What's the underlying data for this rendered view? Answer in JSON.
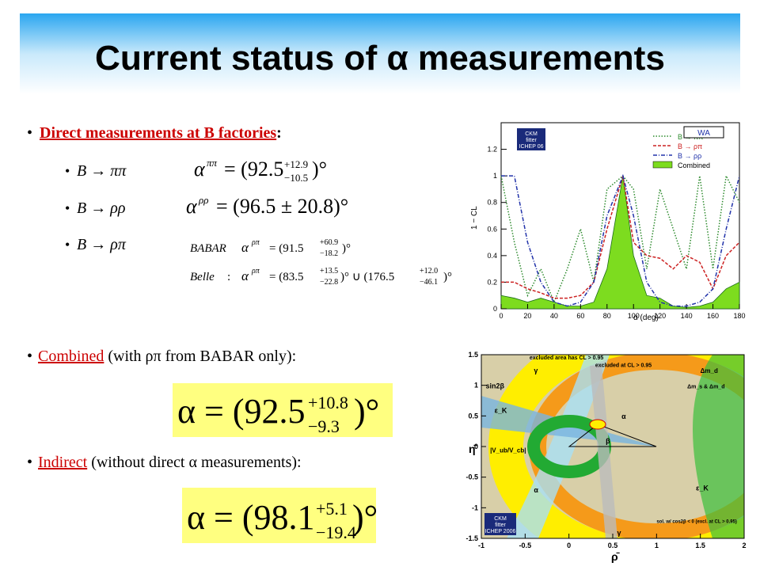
{
  "title": "Current status of α measurements",
  "direct": {
    "heading": "Direct measurements at B factories",
    "colon": ":",
    "items": [
      {
        "decay": "B → ππ",
        "symbol": "α",
        "sup": "ππ",
        "main": "= (92.5",
        "up": "+12.9",
        "down": "−10.5",
        "close": ")°"
      },
      {
        "decay": "B → ρρ",
        "symbol": "α",
        "sup": "ρρ",
        "main": "= (96.5 ± 20.8)°"
      },
      {
        "decay": "B → ρπ"
      }
    ],
    "rhopi": [
      {
        "label": "BABAR",
        "symbol": "α",
        "sup": "ρπ",
        "main": "= (91.5",
        "up": "+60.9",
        "down": "−18.2",
        "close": ")°"
      },
      {
        "label": "Belle",
        "sep": ":",
        "symbol": "α",
        "sup": "ρπ",
        "main": "= (83.5",
        "up": "+13.5",
        "down": "−22.8",
        "mid": ")° ∪ (176.5",
        "up2": "+12.0",
        "down2": "−46.1",
        "close": ")°"
      }
    ]
  },
  "combined": {
    "heading": "Combined",
    "text": "(with ρπ from BABAR only):",
    "formula": {
      "main": "α = (92.5",
      "up": "+10.8",
      "down": "−9.3",
      "close": ")°"
    }
  },
  "indirect": {
    "heading": "Indirect",
    "text": "(without direct α measurements):",
    "formula": {
      "main": "α = (98.1",
      "up": "+5.1",
      "down": "−19.4",
      "close": ")°"
    }
  },
  "plot1": {
    "ylabel": "1 − CL",
    "xlabel": "α (deg)",
    "xlim": [
      0,
      180
    ],
    "ylim": [
      0,
      1.4
    ],
    "xticks": [
      0,
      20,
      40,
      60,
      80,
      100,
      120,
      140,
      160,
      180
    ],
    "yticks": [
      0,
      0.2,
      0.4,
      0.6,
      0.8,
      1,
      1.2
    ],
    "logo": [
      "CKM",
      "fitter",
      "ICHEP 06"
    ],
    "wa": "WA",
    "x": [
      0,
      10,
      20,
      30,
      40,
      50,
      60,
      70,
      80,
      92,
      100,
      110,
      120,
      130,
      140,
      150,
      160,
      170,
      180
    ],
    "series": [
      {
        "name": "B → ππ",
        "color": "#2e8b2e",
        "values": [
          1,
          0.5,
          0.1,
          0.3,
          0.05,
          0.3,
          0.6,
          0.2,
          0.9,
          1,
          0.9,
          0.3,
          0.9,
          0.6,
          0.3,
          1,
          0.3,
          1,
          0.8
        ]
      },
      {
        "name": "B → ρπ",
        "color": "#cc2222",
        "values": [
          0.2,
          0.2,
          0.15,
          0.12,
          0.08,
          0.08,
          0.1,
          0.2,
          0.6,
          1,
          0.5,
          0.4,
          0.38,
          0.3,
          0.4,
          0.35,
          0.15,
          0.4,
          0.5
        ]
      },
      {
        "name": "B → ρρ",
        "color": "#2233aa",
        "values": [
          1,
          1,
          0.5,
          0.2,
          0.05,
          0.02,
          0.05,
          0.2,
          0.7,
          1,
          0.7,
          0.2,
          0.05,
          0.02,
          0.02,
          0.05,
          0.15,
          0.6,
          1
        ]
      },
      {
        "name": "Combined",
        "color": "#7ddc1f",
        "values": [
          0.1,
          0.08,
          0.05,
          0.08,
          0.05,
          0.02,
          0.02,
          0.05,
          0.3,
          1,
          0.4,
          0.1,
          0.08,
          0.02,
          0.01,
          0.02,
          0.05,
          0.15,
          0.2
        ]
      }
    ]
  },
  "plot2": {
    "xlabel": "ρ̄",
    "ylabel": "η̄",
    "xlim": [
      -1,
      2
    ],
    "ylim": [
      -1.5,
      1.5
    ],
    "xticks": [
      -1,
      -0.5,
      0,
      0.5,
      1,
      1.5,
      2
    ],
    "yticks": [
      -1.5,
      -1,
      -0.5,
      0,
      0.5,
      1,
      1.5
    ],
    "labels": [
      "excluded area has CL > 0.95",
      "γ",
      "sin2β",
      "Δm_d",
      "Δm_s & Δm_d",
      "ε_K",
      "|V_ub/V_cb|",
      "α",
      "β",
      "α",
      "ε_K",
      "γ",
      "excluded at CL > 0.95",
      "sol. w/ cos2β < 0 (excl. at CL > 0.95)"
    ],
    "logo": [
      "CKM",
      "fitter",
      "ICHEP 2006"
    ]
  }
}
